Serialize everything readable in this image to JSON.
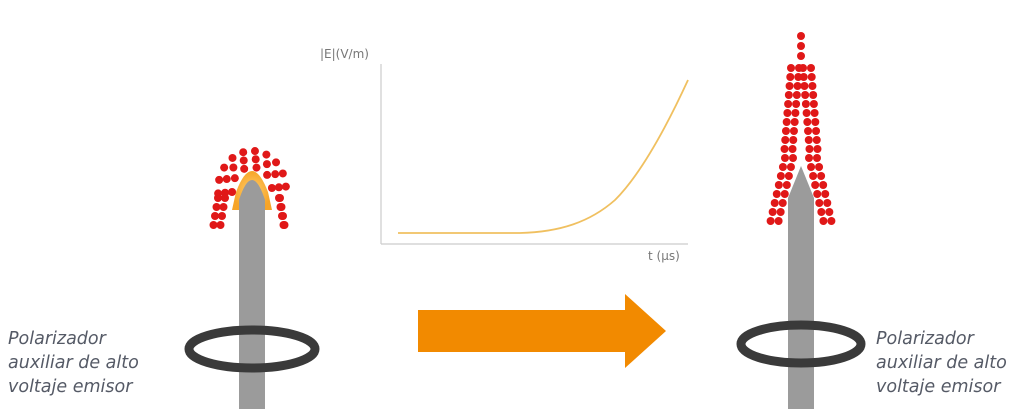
{
  "graph": {
    "y_axis_label": "|E|(V/m)",
    "x_axis_label": "t (µs)",
    "curve_color": "#f0c060"
  },
  "caption_left": {
    "lines": [
      "Polarizador",
      "auxiliar de alto",
      "voltaje emisor"
    ]
  },
  "caption_right": {
    "lines": [
      "Polarizador",
      "auxiliar de alto",
      "voltaje emisor"
    ]
  },
  "colors": {
    "emitter": "#9b9b9b",
    "ring": "#3a3a3a",
    "particles": "#e01818",
    "glow": "#f59a10",
    "arrow": "#f28a00"
  },
  "icons": {
    "arrow": "right-arrow-icon",
    "ring": "ring-electrode-icon"
  }
}
